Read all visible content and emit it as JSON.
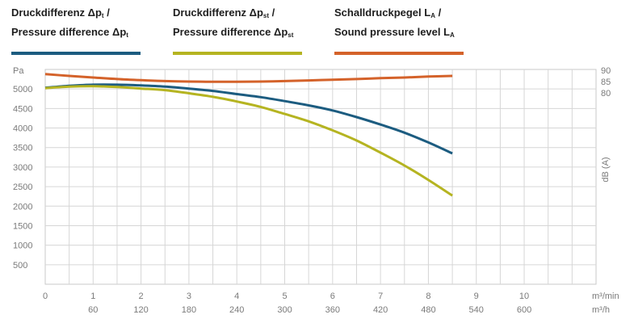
{
  "legend": [
    {
      "line1_a": "Druckdifferenz Δp",
      "line1_sub": "t",
      "line1_b": " /",
      "line2_a": "Pressure difference Δp",
      "line2_sub": "t",
      "color": "#1c5c80"
    },
    {
      "line1_a": "Druckdifferenz Δp",
      "line1_sub": "st",
      "line1_b": " /",
      "line2_a": "Pressure difference Δp",
      "line2_sub": "st",
      "color": "#b5b421"
    },
    {
      "line1_a": "Schalldruckpegel L",
      "line1_sub": "A",
      "line1_b": " /",
      "line2_a": "Sound pressure level L",
      "line2_sub": "A",
      "color": "#d4622a"
    }
  ],
  "chart_data": {
    "type": "line",
    "xlabel": "m³/min",
    "xlabel2": "m³/h",
    "ylabel": "Pa",
    "ylabel_right": "dB (A)",
    "xlim": [
      0,
      11.5
    ],
    "ylim": [
      0,
      5500
    ],
    "ylim_right_ticks": [
      80,
      85,
      90
    ],
    "x_ticks": [
      0,
      1,
      2,
      3,
      4,
      5,
      6,
      7,
      8,
      9,
      10
    ],
    "x_ticks_secondary": [
      "60",
      "120",
      "180",
      "240",
      "300",
      "360",
      "420",
      "480",
      "540",
      "600"
    ],
    "y_ticks": [
      500,
      1000,
      1500,
      2000,
      2500,
      3000,
      3500,
      4000,
      4500,
      5000
    ],
    "grid": true,
    "series": [
      {
        "key": "pt",
        "axis": "left",
        "color": "#1c5c80",
        "x": [
          0,
          0.5,
          1,
          1.5,
          2,
          2.5,
          3,
          3.5,
          4,
          4.5,
          5,
          5.5,
          6,
          6.5,
          7,
          7.5,
          8,
          8.5
        ],
        "y": [
          5030,
          5080,
          5110,
          5110,
          5090,
          5060,
          5010,
          4950,
          4870,
          4790,
          4690,
          4580,
          4450,
          4280,
          4090,
          3880,
          3630,
          3350
        ]
      },
      {
        "key": "pst",
        "axis": "left",
        "color": "#b5b421",
        "x": [
          0,
          0.5,
          1,
          1.5,
          2,
          2.5,
          3,
          3.5,
          4,
          4.5,
          5,
          5.5,
          6,
          6.5,
          7,
          7.5,
          8,
          8.5
        ],
        "y": [
          5020,
          5060,
          5070,
          5050,
          5010,
          4970,
          4890,
          4800,
          4680,
          4540,
          4360,
          4170,
          3940,
          3680,
          3370,
          3040,
          2670,
          2270
        ]
      },
      {
        "key": "la",
        "axis": "right",
        "color": "#d4622a",
        "x": [
          0,
          0.5,
          1,
          1.5,
          2,
          2.5,
          3,
          3.5,
          4,
          4.5,
          5,
          5.5,
          6,
          6.5,
          7,
          7.5,
          8,
          8.5
        ],
        "y": [
          88.3,
          87.5,
          86.8,
          86.1,
          85.6,
          85.2,
          85.0,
          84.9,
          84.9,
          85.0,
          85.2,
          85.5,
          85.8,
          86.1,
          86.5,
          86.8,
          87.2,
          87.5
        ]
      }
    ]
  }
}
